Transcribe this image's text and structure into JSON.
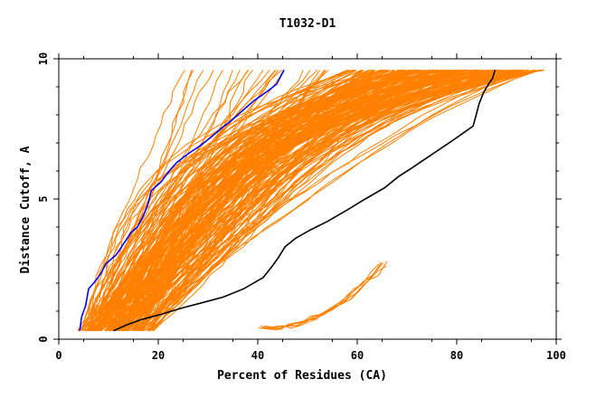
{
  "chart_data": {
    "type": "line",
    "title": "T1032-D1",
    "xlabel": "Percent of Residues (CA)",
    "ylabel": "Distance Cutoff, A",
    "xlim": [
      0,
      100
    ],
    "ylim": [
      0,
      10
    ],
    "x_ticks": [
      0,
      20,
      40,
      60,
      80,
      100
    ],
    "y_ticks": [
      0,
      5,
      10
    ],
    "grid": false,
    "colors": {
      "models": "#ff8000",
      "blue_model": "#0000ff",
      "black_model": "#000000"
    },
    "series": [
      {
        "color": "#0000ff",
        "x": [
          4.2,
          4.6,
          5.4,
          6.0,
          7.0,
          8.3,
          9.5,
          11.5,
          13.4,
          14.5,
          15.8,
          17.0,
          17.9,
          18.6,
          20.5,
          22.2,
          23.7,
          25.9,
          28.4,
          30.6,
          32.5,
          34.7,
          36.6,
          39.2,
          42.4,
          43.8,
          45.3
        ],
        "y": [
          0.3,
          0.8,
          1.2,
          1.8,
          2.0,
          2.3,
          2.7,
          3.0,
          3.5,
          3.8,
          4.0,
          4.4,
          4.8,
          5.3,
          5.6,
          6.0,
          6.3,
          6.6,
          6.9,
          7.2,
          7.5,
          7.8,
          8.1,
          8.5,
          8.9,
          9.1,
          9.6
        ]
      },
      {
        "color": "#000000",
        "x": [
          11.0,
          13.5,
          16.6,
          20.8,
          24.5,
          28.8,
          33.0,
          37.2,
          41.1,
          42.9,
          44.1,
          45.5,
          47.6,
          50.6,
          54.0,
          57.9,
          61.6,
          65.5,
          68.3,
          70.9,
          75.1,
          79.3,
          83.3,
          83.9,
          84.5,
          85.4,
          86.4,
          87.2,
          87.7
        ],
        "y": [
          0.3,
          0.5,
          0.7,
          0.9,
          1.1,
          1.3,
          1.5,
          1.8,
          2.2,
          2.6,
          2.9,
          3.3,
          3.6,
          3.9,
          4.2,
          4.6,
          5.0,
          5.4,
          5.8,
          6.1,
          6.6,
          7.1,
          7.6,
          8.0,
          8.4,
          8.8,
          9.1,
          9.3,
          9.6
        ]
      }
    ]
  }
}
